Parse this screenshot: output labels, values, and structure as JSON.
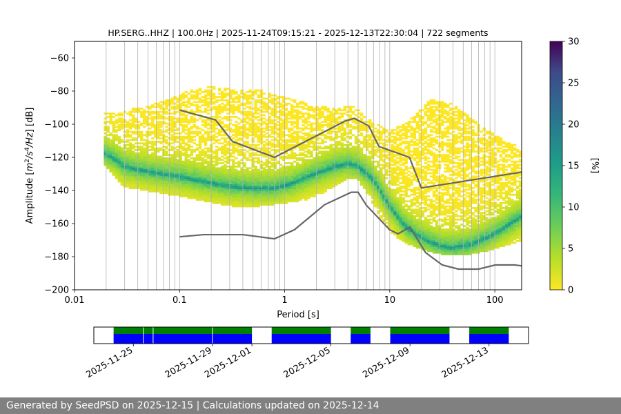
{
  "footer": {
    "text": "Generated by SeedPSD on 2025-12-15 | Calculations updated on 2025-12-14"
  },
  "chart_data": [
    {
      "type": "heatmap",
      "title": "HP.SERG..HHZ | 100.0Hz | 2025-11-24T09:15:21 - 2025-12-13T22:30:04 | 722 segments",
      "xlabel": "Period [s]",
      "ylabel_parts": [
        "Amplitude [",
        "m",
        "2",
        "/",
        "s",
        "4",
        "/",
        "Hz",
        "] [dB]"
      ],
      "x_scale": "log",
      "xlim": [
        0.01,
        180
      ],
      "ylim": [
        -200,
        -50
      ],
      "x_ticks": [
        0.01,
        0.1,
        1,
        10,
        100
      ],
      "x_tick_labels": [
        "0.01",
        "0.1",
        "1",
        "10",
        "100"
      ],
      "y_ticks": [
        -200,
        -180,
        -160,
        -140,
        -120,
        -100,
        -80,
        -60
      ],
      "y_tick_labels": [
        "−200",
        "−180",
        "−160",
        "−140",
        "−120",
        "−100",
        "−80",
        "−60"
      ],
      "grid_period_lines": [
        0.02,
        0.03,
        0.04,
        0.05,
        0.06,
        0.07,
        0.08,
        0.09,
        0.1,
        0.2,
        0.3,
        0.4,
        0.5,
        0.6,
        0.7,
        0.8,
        0.9,
        1,
        2,
        3,
        4,
        5,
        6,
        7,
        8,
        9,
        10,
        20,
        30,
        40,
        50,
        60,
        70,
        80,
        90,
        100
      ],
      "colorbar": {
        "label": "[%]",
        "range": [
          0,
          30
        ],
        "ticks": [
          0,
          5,
          10,
          15,
          20,
          25,
          30
        ],
        "tick_labels": [
          "0",
          "5",
          "10",
          "15",
          "20",
          "25",
          "30"
        ]
      },
      "psd_mode": {
        "period": [
          0.019,
          0.025,
          0.03,
          0.05,
          0.08,
          0.12,
          0.2,
          0.3,
          0.5,
          0.8,
          1.2,
          2,
          3,
          4,
          5,
          6,
          7,
          8,
          10,
          14,
          20,
          30,
          40,
          60,
          90,
          130,
          180
        ],
        "db": [
          -118,
          -122,
          -126,
          -129,
          -131,
          -133,
          -136,
          -138,
          -139,
          -139,
          -136,
          -130,
          -126,
          -124,
          -126,
          -130,
          -134,
          -140,
          -150,
          -162,
          -169,
          -174,
          -175,
          -173,
          -168,
          -162,
          -156
        ]
      },
      "psd_max": {
        "period": [
          0.019,
          0.03,
          0.05,
          0.1,
          0.15,
          0.3,
          0.6,
          1,
          2,
          3,
          4.5,
          7,
          10,
          15,
          20,
          25,
          40,
          60,
          100,
          180
        ],
        "db": [
          -95,
          -93,
          -90,
          -84,
          -78,
          -80,
          -81,
          -85,
          -90,
          -92,
          -90,
          -100,
          -105,
          -100,
          -92,
          -86,
          -89,
          -98,
          -108,
          -116
        ]
      },
      "psd_min": {
        "period": [
          0.019,
          0.03,
          0.05,
          0.1,
          0.2,
          0.4,
          0.8,
          1.5,
          2.5,
          4,
          5,
          6,
          8,
          10,
          15,
          20,
          30,
          40,
          60,
          100,
          180
        ],
        "db": [
          -123,
          -138,
          -140,
          -143,
          -147,
          -150,
          -148,
          -146,
          -140,
          -132,
          -133,
          -141,
          -155,
          -165,
          -172,
          -175,
          -178,
          -179,
          -178,
          -175,
          -170
        ]
      },
      "noise_models": {
        "high": {
          "period": [
            0.1,
            0.22,
            0.32,
            0.8,
            3.8,
            4.6,
            6.3,
            7.9,
            15.4,
            20,
            354
          ],
          "db": [
            -91.5,
            -97.4,
            -110.5,
            -120,
            -98,
            -96.5,
            -101,
            -113.5,
            -120,
            -138.5,
            -126
          ]
        },
        "low": {
          "period": [
            0.1,
            0.17,
            0.4,
            0.8,
            1.24,
            2.4,
            4.3,
            5,
            6,
            10,
            12,
            15.6,
            21.9,
            31.6,
            45,
            70,
            101,
            154,
            328
          ],
          "db": [
            -168,
            -166.7,
            -166.7,
            -169.2,
            -163.7,
            -148.6,
            -141.1,
            -141.1,
            -149,
            -163.8,
            -166.2,
            -162.1,
            -177.5,
            -185,
            -187.5,
            -187.5,
            -185,
            -185,
            -187.5
          ]
        }
      }
    },
    {
      "type": "timeline",
      "x_range": [
        "2025-11-23T00:00:00",
        "2025-12-15T00:00:00"
      ],
      "x_tick_labels": [
        "2025-11-25",
        "2025-11-29",
        "2025-12-01",
        "2025-12-05",
        "2025-12-09",
        "2025-12-13"
      ],
      "x_ticks": [
        "2025-11-25",
        "2025-11-29",
        "2025-12-01",
        "2025-12-05",
        "2025-12-09",
        "2025-12-13"
      ],
      "colors": {
        "available": "#0000ff",
        "used": "#008000"
      },
      "segments": [
        {
          "start": "2025-11-24T00:00",
          "end": "2025-12-01T00:00"
        },
        {
          "start": "2025-12-02T00:00",
          "end": "2025-12-05T00:00"
        },
        {
          "start": "2025-12-06T00:00",
          "end": "2025-12-07T00:00"
        },
        {
          "start": "2025-12-08T00:00",
          "end": "2025-12-11T00:00"
        },
        {
          "start": "2025-12-12T00:00",
          "end": "2025-12-14T00:00"
        }
      ],
      "gaps": [
        "2025-11-25T12:00",
        "2025-11-26T00:00",
        "2025-11-29T00:00"
      ]
    }
  ]
}
